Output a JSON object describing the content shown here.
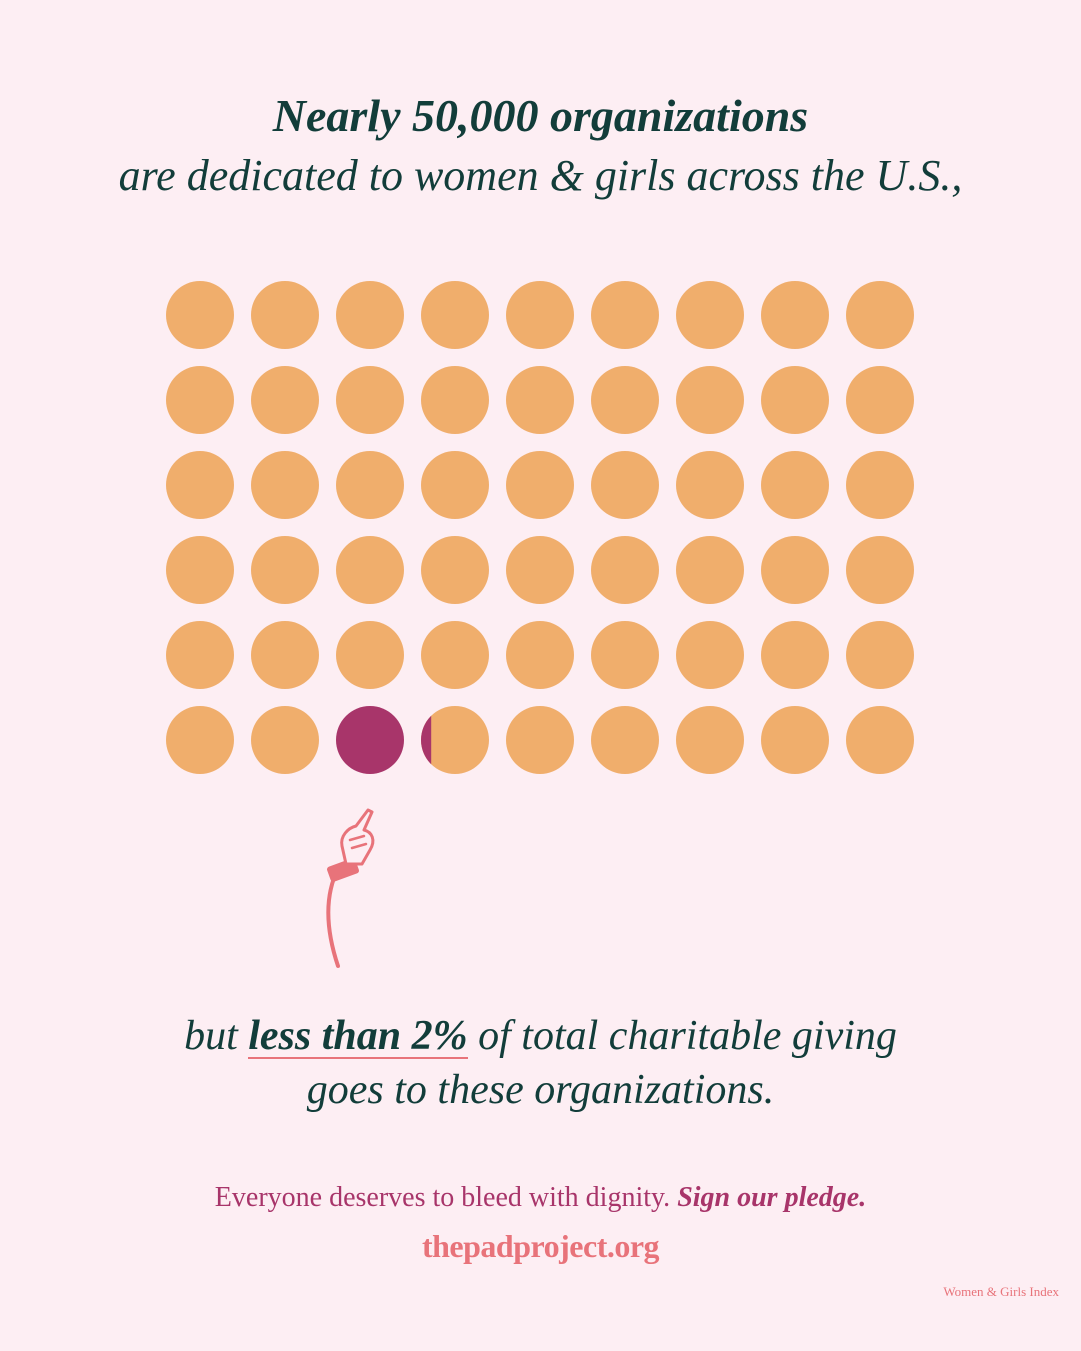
{
  "headline": {
    "strong": "Nearly 50,000 organizations",
    "sub": "are dedicated to women & girls across the U.S.,"
  },
  "dot_grid": {
    "rows": 6,
    "columns": 9,
    "total_dots": 54,
    "highlighted_dots": 1.15,
    "base_color": "#f0ae6c",
    "highlight_color": "#a8356a"
  },
  "caption": {
    "prefix": "but",
    "highlight": "less than 2%",
    "suffix": "of total charitable giving",
    "line2": "goes to these organizations."
  },
  "cta": {
    "text": "Everyone deserves to bleed with dignity.",
    "pledge": "Sign our pledge."
  },
  "site_url": "thepadproject.org",
  "source_note": "Women & Girls Index",
  "colors": {
    "background": "#fdeef3",
    "headline": "#123d3a",
    "accent": "#a8356a",
    "coral": "#e8737a"
  },
  "icons": {
    "pointer": "pointing-hand-icon"
  }
}
